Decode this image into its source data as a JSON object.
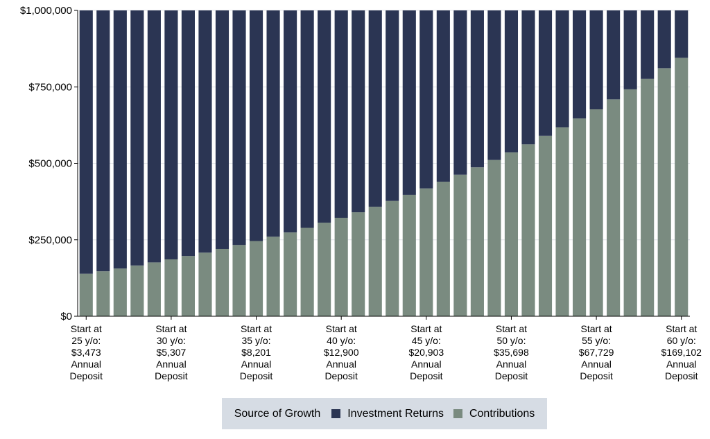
{
  "chart_data": {
    "type": "bar",
    "stacked": true,
    "title": "",
    "xlabel": "",
    "ylabel": "",
    "ylim": [
      0,
      1000000
    ],
    "yticks": [
      0,
      250000,
      500000,
      750000,
      1000000
    ],
    "ytick_labels": [
      "$0",
      "$250,000",
      "$500,000",
      "$750,000",
      "$1,000,000"
    ],
    "grid": true,
    "categories": [
      "25",
      "26",
      "27",
      "28",
      "29",
      "30",
      "31",
      "32",
      "33",
      "34",
      "35",
      "36",
      "37",
      "38",
      "39",
      "40",
      "41",
      "42",
      "43",
      "44",
      "45",
      "46",
      "47",
      "48",
      "49",
      "50",
      "51",
      "52",
      "53",
      "54",
      "55",
      "56",
      "57",
      "58",
      "59",
      "60"
    ],
    "category_labels": [
      {
        "index": 0,
        "lines": [
          "Start at",
          "25 y/o:",
          "$3,473",
          "Annual",
          "Deposit"
        ]
      },
      {
        "index": 5,
        "lines": [
          "Start at",
          "30 y/o:",
          "$5,307",
          "Annual",
          "Deposit"
        ]
      },
      {
        "index": 10,
        "lines": [
          "Start at",
          "35 y/o:",
          "$8,201",
          "Annual",
          "Deposit"
        ]
      },
      {
        "index": 15,
        "lines": [
          "Start at",
          "40 y/o:",
          "$12,900",
          "Annual",
          "Deposit"
        ]
      },
      {
        "index": 20,
        "lines": [
          "Start at",
          "45 y/o:",
          "$20,903",
          "Annual",
          "Deposit"
        ]
      },
      {
        "index": 25,
        "lines": [
          "Start at",
          "50 y/o:",
          "$35,698",
          "Annual",
          "Deposit"
        ]
      },
      {
        "index": 30,
        "lines": [
          "Start at",
          "55 y/o:",
          "$67,729",
          "Annual",
          "Deposit"
        ]
      },
      {
        "index": 35,
        "lines": [
          "Start at",
          "60 y/o:",
          "$169,102",
          "Annual",
          "Deposit"
        ]
      }
    ],
    "series": [
      {
        "name": "Contributions",
        "color": "#7a8b80",
        "values": [
          139000,
          147000,
          156000,
          166000,
          176000,
          186000,
          197000,
          208000,
          220000,
          233000,
          246000,
          260000,
          274000,
          289000,
          306000,
          322000,
          340000,
          358000,
          377000,
          397000,
          418000,
          440000,
          463000,
          487000,
          511000,
          536000,
          562000,
          590000,
          618000,
          647000,
          677000,
          709000,
          742000,
          776000,
          811000,
          845000
        ]
      },
      {
        "name": "Investment Returns",
        "color": "#2b3553",
        "values": [
          861000,
          853000,
          844000,
          834000,
          824000,
          814000,
          803000,
          792000,
          780000,
          767000,
          754000,
          740000,
          726000,
          711000,
          694000,
          678000,
          660000,
          642000,
          623000,
          603000,
          582000,
          560000,
          537000,
          513000,
          489000,
          464000,
          438000,
          410000,
          382000,
          353000,
          323000,
          291000,
          258000,
          224000,
          189000,
          155000
        ]
      }
    ],
    "legend": {
      "title": "Source of Growth",
      "placement": "bottom",
      "items": [
        {
          "label": "Investment Returns",
          "color": "#2b3553"
        },
        {
          "label": "Contributions",
          "color": "#7a8b80"
        }
      ]
    }
  }
}
